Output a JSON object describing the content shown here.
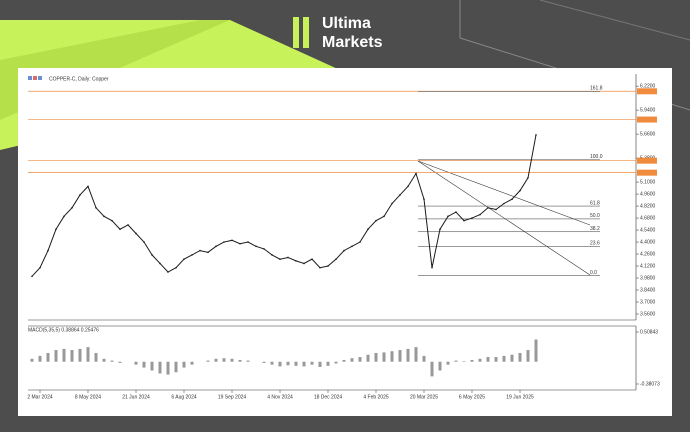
{
  "brand": {
    "line1": "Ultima",
    "line2": "Markets"
  },
  "chart_data": {
    "type": "line",
    "title": "COPPER-C, Daily: Copper",
    "color": "#1a1a1a",
    "categories": [
      null,
      "2 Mar 2024",
      null,
      null,
      null,
      null,
      null,
      "8 May 2024",
      null,
      null,
      null,
      null,
      null,
      "21 Jun 2024",
      null,
      null,
      null,
      null,
      null,
      "6 Aug 2024",
      null,
      null,
      null,
      null,
      null,
      "19 Sep 2024",
      null,
      null,
      null,
      null,
      null,
      "4 Nov 2024",
      null,
      null,
      null,
      null,
      null,
      "18 Dec 2024",
      null,
      null,
      null,
      null,
      null,
      "4 Feb 2025",
      null,
      null,
      null,
      null,
      null,
      "20 Mar 2025",
      null,
      null,
      null,
      null,
      null,
      "6 May 2025",
      null,
      null,
      null,
      null,
      null,
      "19 Jun 2025",
      null,
      null
    ],
    "values": [
      4.0,
      4.1,
      4.3,
      4.55,
      4.7,
      4.8,
      4.95,
      5.05,
      4.8,
      4.7,
      4.65,
      4.55,
      4.6,
      4.5,
      4.4,
      4.25,
      4.15,
      4.05,
      4.1,
      4.2,
      4.25,
      4.3,
      4.28,
      4.35,
      4.4,
      4.42,
      4.38,
      4.4,
      4.35,
      4.32,
      4.25,
      4.2,
      4.22,
      4.18,
      4.15,
      4.2,
      4.1,
      4.12,
      4.2,
      4.3,
      4.35,
      4.4,
      4.55,
      4.65,
      4.7,
      4.85,
      4.95,
      5.05,
      5.2,
      4.9,
      4.1,
      4.55,
      4.7,
      4.75,
      4.65,
      4.68,
      4.72,
      4.8,
      4.78,
      4.85,
      4.9,
      5.0,
      5.15,
      5.65
    ],
    "ylim": [
      3.49,
      6.35
    ],
    "yticks": [
      {
        "value": 3.56,
        "label": "3.5600"
      },
      {
        "value": 3.7,
        "label": "3.7000"
      },
      {
        "value": 3.84,
        "label": "3.8400"
      },
      {
        "value": 3.98,
        "label": "3.9800"
      },
      {
        "value": 4.12,
        "label": "4.1200"
      },
      {
        "value": 4.26,
        "label": "4.2600"
      },
      {
        "value": 4.4,
        "label": "4.4000"
      },
      {
        "value": 4.54,
        "label": "4.5400"
      },
      {
        "value": 4.68,
        "label": "4.6800"
      },
      {
        "value": 4.82,
        "label": "4.8200"
      },
      {
        "value": 4.96,
        "label": "4.9600"
      },
      {
        "value": 5.1,
        "label": "5.1000"
      },
      {
        "value": 5.38,
        "label": "5.3800"
      },
      {
        "value": 5.66,
        "label": "5.6600"
      },
      {
        "value": 5.94,
        "label": "5.9400"
      },
      {
        "value": 6.22,
        "label": "6.2200"
      }
    ],
    "levels": [
      6.16,
      5.83,
      5.35,
      5.21
    ],
    "level_color": "#f08a3c",
    "fib": [
      {
        "name": "161.8",
        "price": 6.16
      },
      {
        "name": "100.0",
        "price": 5.36
      },
      {
        "name": "61.8",
        "price": 4.82
      },
      {
        "name": "50.0",
        "price": 4.67
      },
      {
        "name": "38.2",
        "price": 4.52
      },
      {
        "name": "23.6",
        "price": 4.35
      },
      {
        "name": "0.0",
        "price": 4.01
      }
    ],
    "indicator": {
      "label": "MACD(5,35,5) 0.38864 0.25476",
      "color": "#999999",
      "values": [
        0.05,
        0.1,
        0.15,
        0.2,
        0.22,
        0.2,
        0.22,
        0.25,
        0.15,
        0.05,
        0.02,
        -0.02,
        0,
        -0.05,
        -0.1,
        -0.15,
        -0.2,
        -0.22,
        -0.18,
        -0.1,
        -0.05,
        0,
        0.02,
        0.05,
        0.06,
        0.05,
        0.03,
        0.02,
        0,
        -0.02,
        -0.05,
        -0.08,
        -0.06,
        -0.07,
        -0.08,
        -0.05,
        -0.09,
        -0.07,
        -0.03,
        0.03,
        0.06,
        0.08,
        0.12,
        0.15,
        0.16,
        0.18,
        0.2,
        0.22,
        0.25,
        0.1,
        -0.25,
        -0.15,
        -0.05,
        0.02,
        0.01,
        0.03,
        0.05,
        0.08,
        0.08,
        0.1,
        0.12,
        0.15,
        0.2,
        0.38
      ],
      "ylim": [
        -0.38073,
        0.50843
      ],
      "yticks": [
        0.50843,
        -0.38073
      ]
    }
  }
}
